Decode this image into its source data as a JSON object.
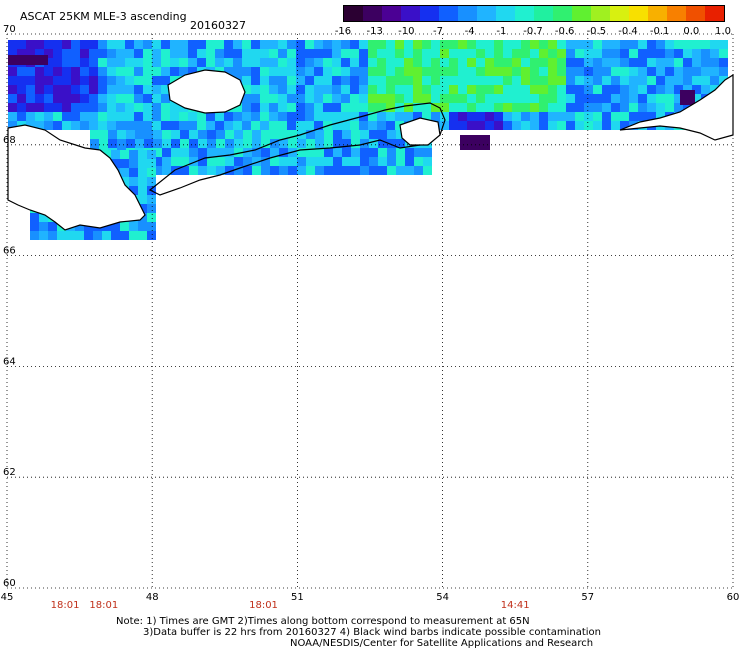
{
  "header": {
    "title": "ASCAT 25KM MLE-3 ascending",
    "date": "20160327"
  },
  "colorbar": {
    "labels": [
      "-16",
      "-13",
      "-10",
      "-7",
      "-4",
      "-1",
      "-0.7",
      "-0.6",
      "-0.5",
      "-0.4",
      "-0.1",
      "0.0",
      "1.0"
    ],
    "colors": [
      "#2b0032",
      "#3c0060",
      "#4b0094",
      "#3a10c8",
      "#1530f0",
      "#1060ff",
      "#1890ff",
      "#20b4ff",
      "#20d8f0",
      "#20f0d0",
      "#20f0a0",
      "#30f070",
      "#60f030",
      "#a0f020",
      "#d8f010",
      "#f8e000",
      "#f8b000",
      "#f88000",
      "#f05000",
      "#e82000"
    ]
  },
  "map": {
    "lat_labels": [
      "70",
      "68",
      "66",
      "64",
      "62",
      "60"
    ],
    "lon_labels": [
      "45",
      "48",
      "51",
      "54",
      "57",
      "60"
    ],
    "lat_range": [
      60,
      70
    ],
    "lon_range": [
      45,
      60
    ],
    "grid": "dotted",
    "time_labels": [
      {
        "text": "18:01",
        "lon": 46.2
      },
      {
        "text": "18:01",
        "lon": 47.0
      },
      {
        "text": "18:01",
        "lon": 50.3
      },
      {
        "text": "14:41",
        "lon": 55.5
      }
    ]
  },
  "notes": {
    "line1": "Note: 1) Times are GMT 2)Times along bottom correspond to measurement at 65N",
    "line2": "3)Data buffer is 22 hrs from 20160327 4) Black wind barbs indicate possible contamination",
    "line3": "NOAA/NESDIS/Center for Satellite Applications and Research"
  }
}
